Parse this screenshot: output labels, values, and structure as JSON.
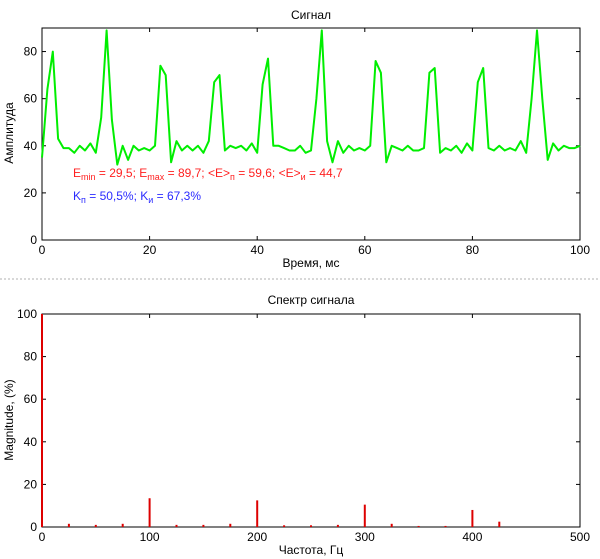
{
  "chart_data": [
    {
      "type": "line",
      "title": "Сигнал",
      "xlabel": "Время, мс",
      "ylabel": "Амплитуда",
      "xlim": [
        0,
        100
      ],
      "ylim": [
        0,
        90
      ],
      "xticks": [
        0,
        20,
        40,
        60,
        80,
        100
      ],
      "yticks": [
        0,
        20,
        40,
        60,
        80
      ],
      "grid": false,
      "series_color": "#00ee00",
      "series": [
        {
          "x": [
            0,
            1,
            2,
            3,
            4,
            5,
            6,
            7,
            8,
            9,
            10,
            11,
            12,
            13,
            14,
            15,
            16,
            17,
            18,
            19,
            20,
            21,
            22,
            23,
            24,
            25,
            26,
            27,
            28,
            29,
            30,
            31,
            32,
            33,
            34,
            35,
            36,
            37,
            38,
            39,
            40,
            41,
            42,
            43,
            44,
            45,
            46,
            47,
            48,
            49,
            50,
            51,
            52,
            53,
            54,
            55,
            56,
            57,
            58,
            59,
            60,
            61,
            62,
            63,
            64,
            65,
            66,
            67,
            68,
            69,
            70,
            71,
            72,
            73,
            74,
            75,
            76,
            77,
            78,
            79,
            80,
            81,
            82,
            83,
            84,
            85,
            86,
            87,
            88,
            89,
            90,
            91,
            92,
            93,
            94,
            95,
            96,
            97,
            98,
            99,
            100
          ],
          "values": [
            35,
            64,
            80,
            43,
            39,
            39,
            37,
            40,
            38,
            41,
            37,
            52,
            89,
            51,
            32,
            40,
            34,
            40,
            38,
            39,
            38,
            40,
            74,
            70,
            33,
            42,
            38,
            40,
            38,
            40,
            37,
            42,
            67,
            70,
            38,
            40,
            39,
            40,
            38,
            41,
            37,
            66,
            77,
            40,
            40,
            39,
            38,
            38,
            40,
            37,
            38,
            60,
            89,
            42,
            33,
            42,
            37,
            40,
            38,
            39,
            38,
            40,
            76,
            71,
            33,
            40,
            39,
            38,
            40,
            38,
            38,
            39,
            71,
            73,
            37,
            39,
            38,
            40,
            37,
            41,
            38,
            67,
            73,
            39,
            38,
            40,
            38,
            39,
            38,
            42,
            37,
            60,
            89,
            60,
            34,
            41,
            38,
            40,
            39,
            39,
            40
          ]
        }
      ],
      "annotation_line1": "E_min = 29,5; E_max = 89,7; <E>_п = 59,6; <E>_и = 44,7",
      "annotation_line2": "K_п = 50,5%; K_и = 67,3%"
    },
    {
      "type": "bar",
      "title": "Спектр сигнала",
      "xlabel": "Частота, Гц",
      "ylabel": "Magnitude, (%)",
      "xlim": [
        0,
        500
      ],
      "ylim": [
        0,
        100
      ],
      "xticks": [
        0,
        100,
        200,
        300,
        400,
        500
      ],
      "yticks": [
        0,
        20,
        40,
        60,
        80,
        100
      ],
      "grid": false,
      "series_color": "#dd0000",
      "series": [
        {
          "x": [
            0,
            25,
            50,
            75,
            100,
            125,
            150,
            175,
            200,
            225,
            250,
            275,
            300,
            325,
            350,
            375,
            400,
            425
          ],
          "values": [
            100,
            1.5,
            1,
            1.5,
            13.5,
            1,
            1,
            1.5,
            12.5,
            0.8,
            0.8,
            1,
            10.5,
            1.5,
            0.5,
            0.5,
            8,
            2.5
          ]
        }
      ]
    }
  ],
  "annotation": {
    "e_min_label": "E",
    "e_min_sub": "min",
    "e_min_value": " = 29,5; ",
    "e_max_label": "E",
    "e_max_sub": "max",
    "e_max_value": " = 89,7; ",
    "e_p_label": "<E>",
    "e_p_sub": "п",
    "e_p_value": " = 59,6; ",
    "e_i_label": "<E>",
    "e_i_sub": "и",
    "e_i_value": " = 44,7",
    "k_p_label": "K",
    "k_p_sub": "п",
    "k_p_value": " = 50,5%; ",
    "k_i_label": "K",
    "k_i_sub": "и",
    "k_i_value": " = 67,3%"
  }
}
